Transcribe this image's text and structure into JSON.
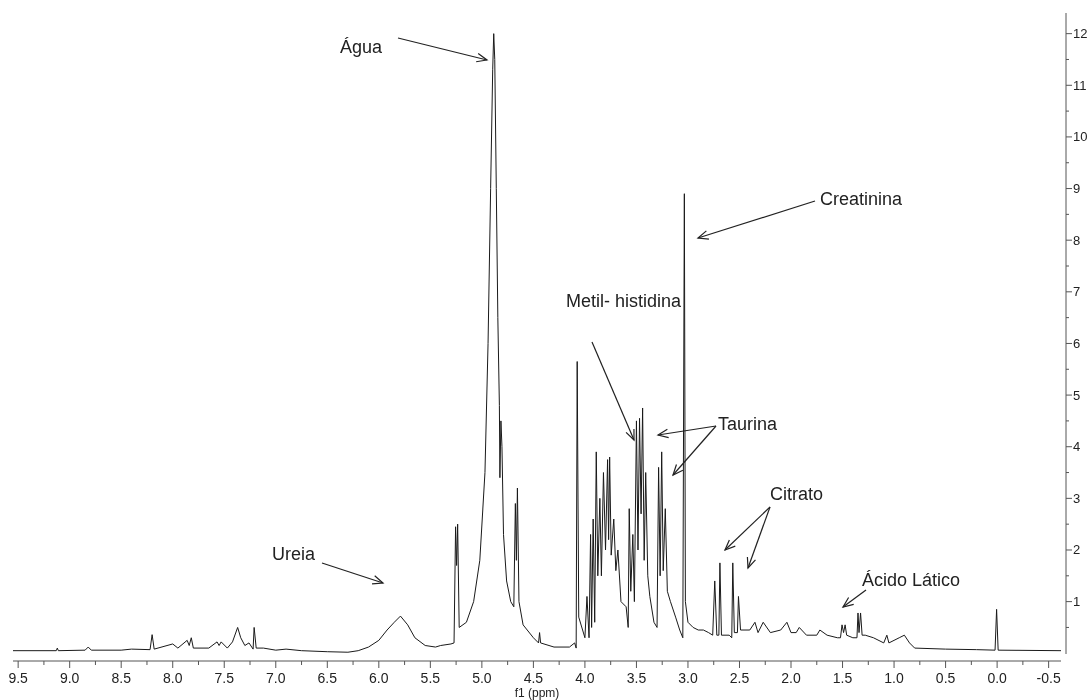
{
  "chart_data": {
    "type": "line",
    "xlabel": "f1 (ppm)",
    "xlim": [
      9.55,
      -0.62
    ],
    "xticks": [
      {
        "value": 9.5,
        "label": "9.5"
      },
      {
        "value": 9.25,
        "label": null
      },
      {
        "value": 9.0,
        "label": "9.0"
      },
      {
        "value": 8.75,
        "label": null
      },
      {
        "value": 8.5,
        "label": "8.5"
      },
      {
        "value": 8.25,
        "label": null
      },
      {
        "value": 8.0,
        "label": "8.0"
      },
      {
        "value": 7.75,
        "label": null
      },
      {
        "value": 7.5,
        "label": "7.5"
      },
      {
        "value": 7.25,
        "label": null
      },
      {
        "value": 7.0,
        "label": "7.0"
      },
      {
        "value": 6.75,
        "label": null
      },
      {
        "value": 6.5,
        "label": "6.5"
      },
      {
        "value": 6.25,
        "label": null
      },
      {
        "value": 6.0,
        "label": "6.0"
      },
      {
        "value": 5.75,
        "label": null
      },
      {
        "value": 5.5,
        "label": "5.5"
      },
      {
        "value": 5.25,
        "label": null
      },
      {
        "value": 5.0,
        "label": "5.0"
      },
      {
        "value": 4.75,
        "label": null
      },
      {
        "value": 4.5,
        "label": "4.5"
      },
      {
        "value": 4.25,
        "label": null
      },
      {
        "value": 4.0,
        "label": "4.0"
      },
      {
        "value": 3.75,
        "label": null
      },
      {
        "value": 3.5,
        "label": "3.5"
      },
      {
        "value": 3.25,
        "label": null
      },
      {
        "value": 3.0,
        "label": "3.0"
      },
      {
        "value": 2.75,
        "label": null
      },
      {
        "value": 2.5,
        "label": "2.5"
      },
      {
        "value": 2.25,
        "label": null
      },
      {
        "value": 2.0,
        "label": "2.0"
      },
      {
        "value": 1.75,
        "label": null
      },
      {
        "value": 1.5,
        "label": "1.5"
      },
      {
        "value": 1.25,
        "label": null
      },
      {
        "value": 1.0,
        "label": "1.0"
      },
      {
        "value": 0.75,
        "label": null
      },
      {
        "value": 0.5,
        "label": "0.5"
      },
      {
        "value": 0.25,
        "label": null
      },
      {
        "value": 0,
        "label": "0.0"
      },
      {
        "value": -0.25,
        "label": null
      },
      {
        "value": -0.5,
        "label": "-0.5"
      }
    ],
    "ylim": [
      -0.15,
      12.4
    ],
    "yticks": [
      {
        "value": 0.5,
        "label": null
      },
      1,
      {
        "value": 1.5,
        "label": null
      },
      2,
      {
        "value": 2.5,
        "label": null
      },
      3,
      {
        "value": 3.5,
        "label": null
      },
      4,
      {
        "value": 4.5,
        "label": null
      },
      5,
      {
        "value": 5.5,
        "label": null
      },
      6,
      {
        "value": 6.5,
        "label": null
      },
      7,
      {
        "value": 7.5,
        "label": null
      },
      8,
      {
        "value": 8.5,
        "label": null
      },
      9,
      {
        "value": 9.5,
        "label": null
      },
      10,
      {
        "value": 10.5,
        "label": null
      },
      11,
      {
        "value": 11.5,
        "label": null
      },
      12
    ],
    "grid": false,
    "marker": "none",
    "line_style": "solid",
    "annotations": [
      "Água",
      "Creatinina",
      "Metil- histidina",
      "Taurina",
      "Citrato",
      "Ácido Lático",
      "Ureia"
    ],
    "series": [
      {
        "color": "#1a1a1a",
        "x": [
          9.55,
          9.13,
          9.12,
          9.11,
          8.85,
          8.82,
          8.79,
          8.5,
          8.4,
          8.22,
          8.2,
          8.18,
          8.0,
          7.95,
          7.86,
          7.84,
          7.82,
          7.8,
          7.65,
          7.57,
          7.55,
          7.53,
          7.47,
          7.42,
          7.37,
          7.34,
          7.3,
          7.26,
          7.22,
          7.21,
          7.19,
          7.12,
          7.0,
          6.9,
          6.75,
          6.5,
          6.3,
          6.2,
          6.1,
          6.0,
          5.92,
          5.85,
          5.79,
          5.72,
          5.65,
          5.55,
          5.45,
          5.4,
          5.3,
          5.27,
          5.255,
          5.245,
          5.235,
          5.22,
          5.15,
          5.08,
          5.02,
          4.97,
          4.94,
          4.915,
          4.895,
          4.885,
          4.875,
          4.86,
          4.845,
          4.83,
          4.825,
          4.815,
          4.805,
          4.79,
          4.76,
          4.72,
          4.69,
          4.675,
          4.665,
          4.655,
          4.64,
          4.6,
          4.5,
          4.45,
          4.44,
          4.43,
          4.3,
          4.15,
          4.1,
          4.085,
          4.075,
          4.06,
          4.0,
          3.98,
          3.96,
          3.945,
          3.935,
          3.92,
          3.905,
          3.89,
          3.875,
          3.855,
          3.84,
          3.82,
          3.8,
          3.78,
          3.77,
          3.76,
          3.745,
          3.72,
          3.7,
          3.68,
          3.65,
          3.6,
          3.58,
          3.57,
          3.555,
          3.535,
          3.52,
          3.5,
          3.485,
          3.47,
          3.455,
          3.44,
          3.425,
          3.41,
          3.39,
          3.37,
          3.33,
          3.3,
          3.285,
          3.27,
          3.255,
          3.24,
          3.22,
          3.2,
          3.17,
          3.12,
          3.08,
          3.05,
          3.035,
          3.025,
          3.0,
          2.95,
          2.9,
          2.85,
          2.8,
          2.76,
          2.74,
          2.72,
          2.7,
          2.69,
          2.675,
          2.6,
          2.575,
          2.565,
          2.55,
          2.52,
          2.51,
          2.49,
          2.4,
          2.35,
          2.32,
          2.27,
          2.2,
          2.1,
          2.04,
          2.0,
          1.95,
          1.92,
          1.85,
          1.75,
          1.72,
          1.65,
          1.55,
          1.52,
          1.505,
          1.49,
          1.475,
          1.46,
          1.4,
          1.36,
          1.35,
          1.34,
          1.325,
          1.31,
          1.28,
          1.2,
          1.1,
          1.07,
          1.05,
          0.95,
          0.9,
          0.85,
          0.8,
          0.5,
          0.2,
          0.02,
          0.005,
          -0.01,
          -0.62
        ],
        "values": [
          0.05,
          0.05,
          0.1,
          0.05,
          0.06,
          0.12,
          0.06,
          0.06,
          0.08,
          0.07,
          0.36,
          0.08,
          0.18,
          0.1,
          0.25,
          0.15,
          0.3,
          0.1,
          0.1,
          0.22,
          0.15,
          0.22,
          0.1,
          0.22,
          0.5,
          0.3,
          0.15,
          0.2,
          0.08,
          0.5,
          0.1,
          0.1,
          0.06,
          0.08,
          0.05,
          0.03,
          0.02,
          0.05,
          0.12,
          0.25,
          0.45,
          0.6,
          0.72,
          0.55,
          0.3,
          0.15,
          0.12,
          0.15,
          0.18,
          0.2,
          2.45,
          1.7,
          2.5,
          0.5,
          0.6,
          1.0,
          1.8,
          3.5,
          6,
          9,
          11.3,
          12.0,
          11.5,
          9,
          6.5,
          4.8,
          3.4,
          4.5,
          4.0,
          2.3,
          1.4,
          1.0,
          0.9,
          2.9,
          1.8,
          3.2,
          1.0,
          0.55,
          0.3,
          0.2,
          0.4,
          0.2,
          0.12,
          0.12,
          0.2,
          0.1,
          5.65,
          0.7,
          0.3,
          1.1,
          0.3,
          2.3,
          0.5,
          2.6,
          0.6,
          3.9,
          1.5,
          3.0,
          1.5,
          3.5,
          2.0,
          3.75,
          2.2,
          3.8,
          1.9,
          2.6,
          1.6,
          2.0,
          1.0,
          0.9,
          0.5,
          2.8,
          1.2,
          2.3,
          1.0,
          4.5,
          2.0,
          4.55,
          2.7,
          4.75,
          1.8,
          3.5,
          1.5,
          1.1,
          0.6,
          0.5,
          3.6,
          1.5,
          3.9,
          1.6,
          2.8,
          1.2,
          1.0,
          0.7,
          0.45,
          0.3,
          8.9,
          1.0,
          0.6,
          0.5,
          0.45,
          0.45,
          0.4,
          0.35,
          1.4,
          0.35,
          0.35,
          1.75,
          0.35,
          0.35,
          0.3,
          1.75,
          0.4,
          0.4,
          1.1,
          0.45,
          0.45,
          0.6,
          0.4,
          0.6,
          0.4,
          0.45,
          0.6,
          0.4,
          0.4,
          0.5,
          0.35,
          0.35,
          0.45,
          0.35,
          0.3,
          0.3,
          0.55,
          0.4,
          0.55,
          0.35,
          0.3,
          0.3,
          0.78,
          0.4,
          0.78,
          0.35,
          0.35,
          0.3,
          0.2,
          0.35,
          0.2,
          0.3,
          0.35,
          0.2,
          0.1,
          0.08,
          0.07,
          0.06,
          0.85,
          0.06,
          0.05
        ]
      }
    ]
  }
}
